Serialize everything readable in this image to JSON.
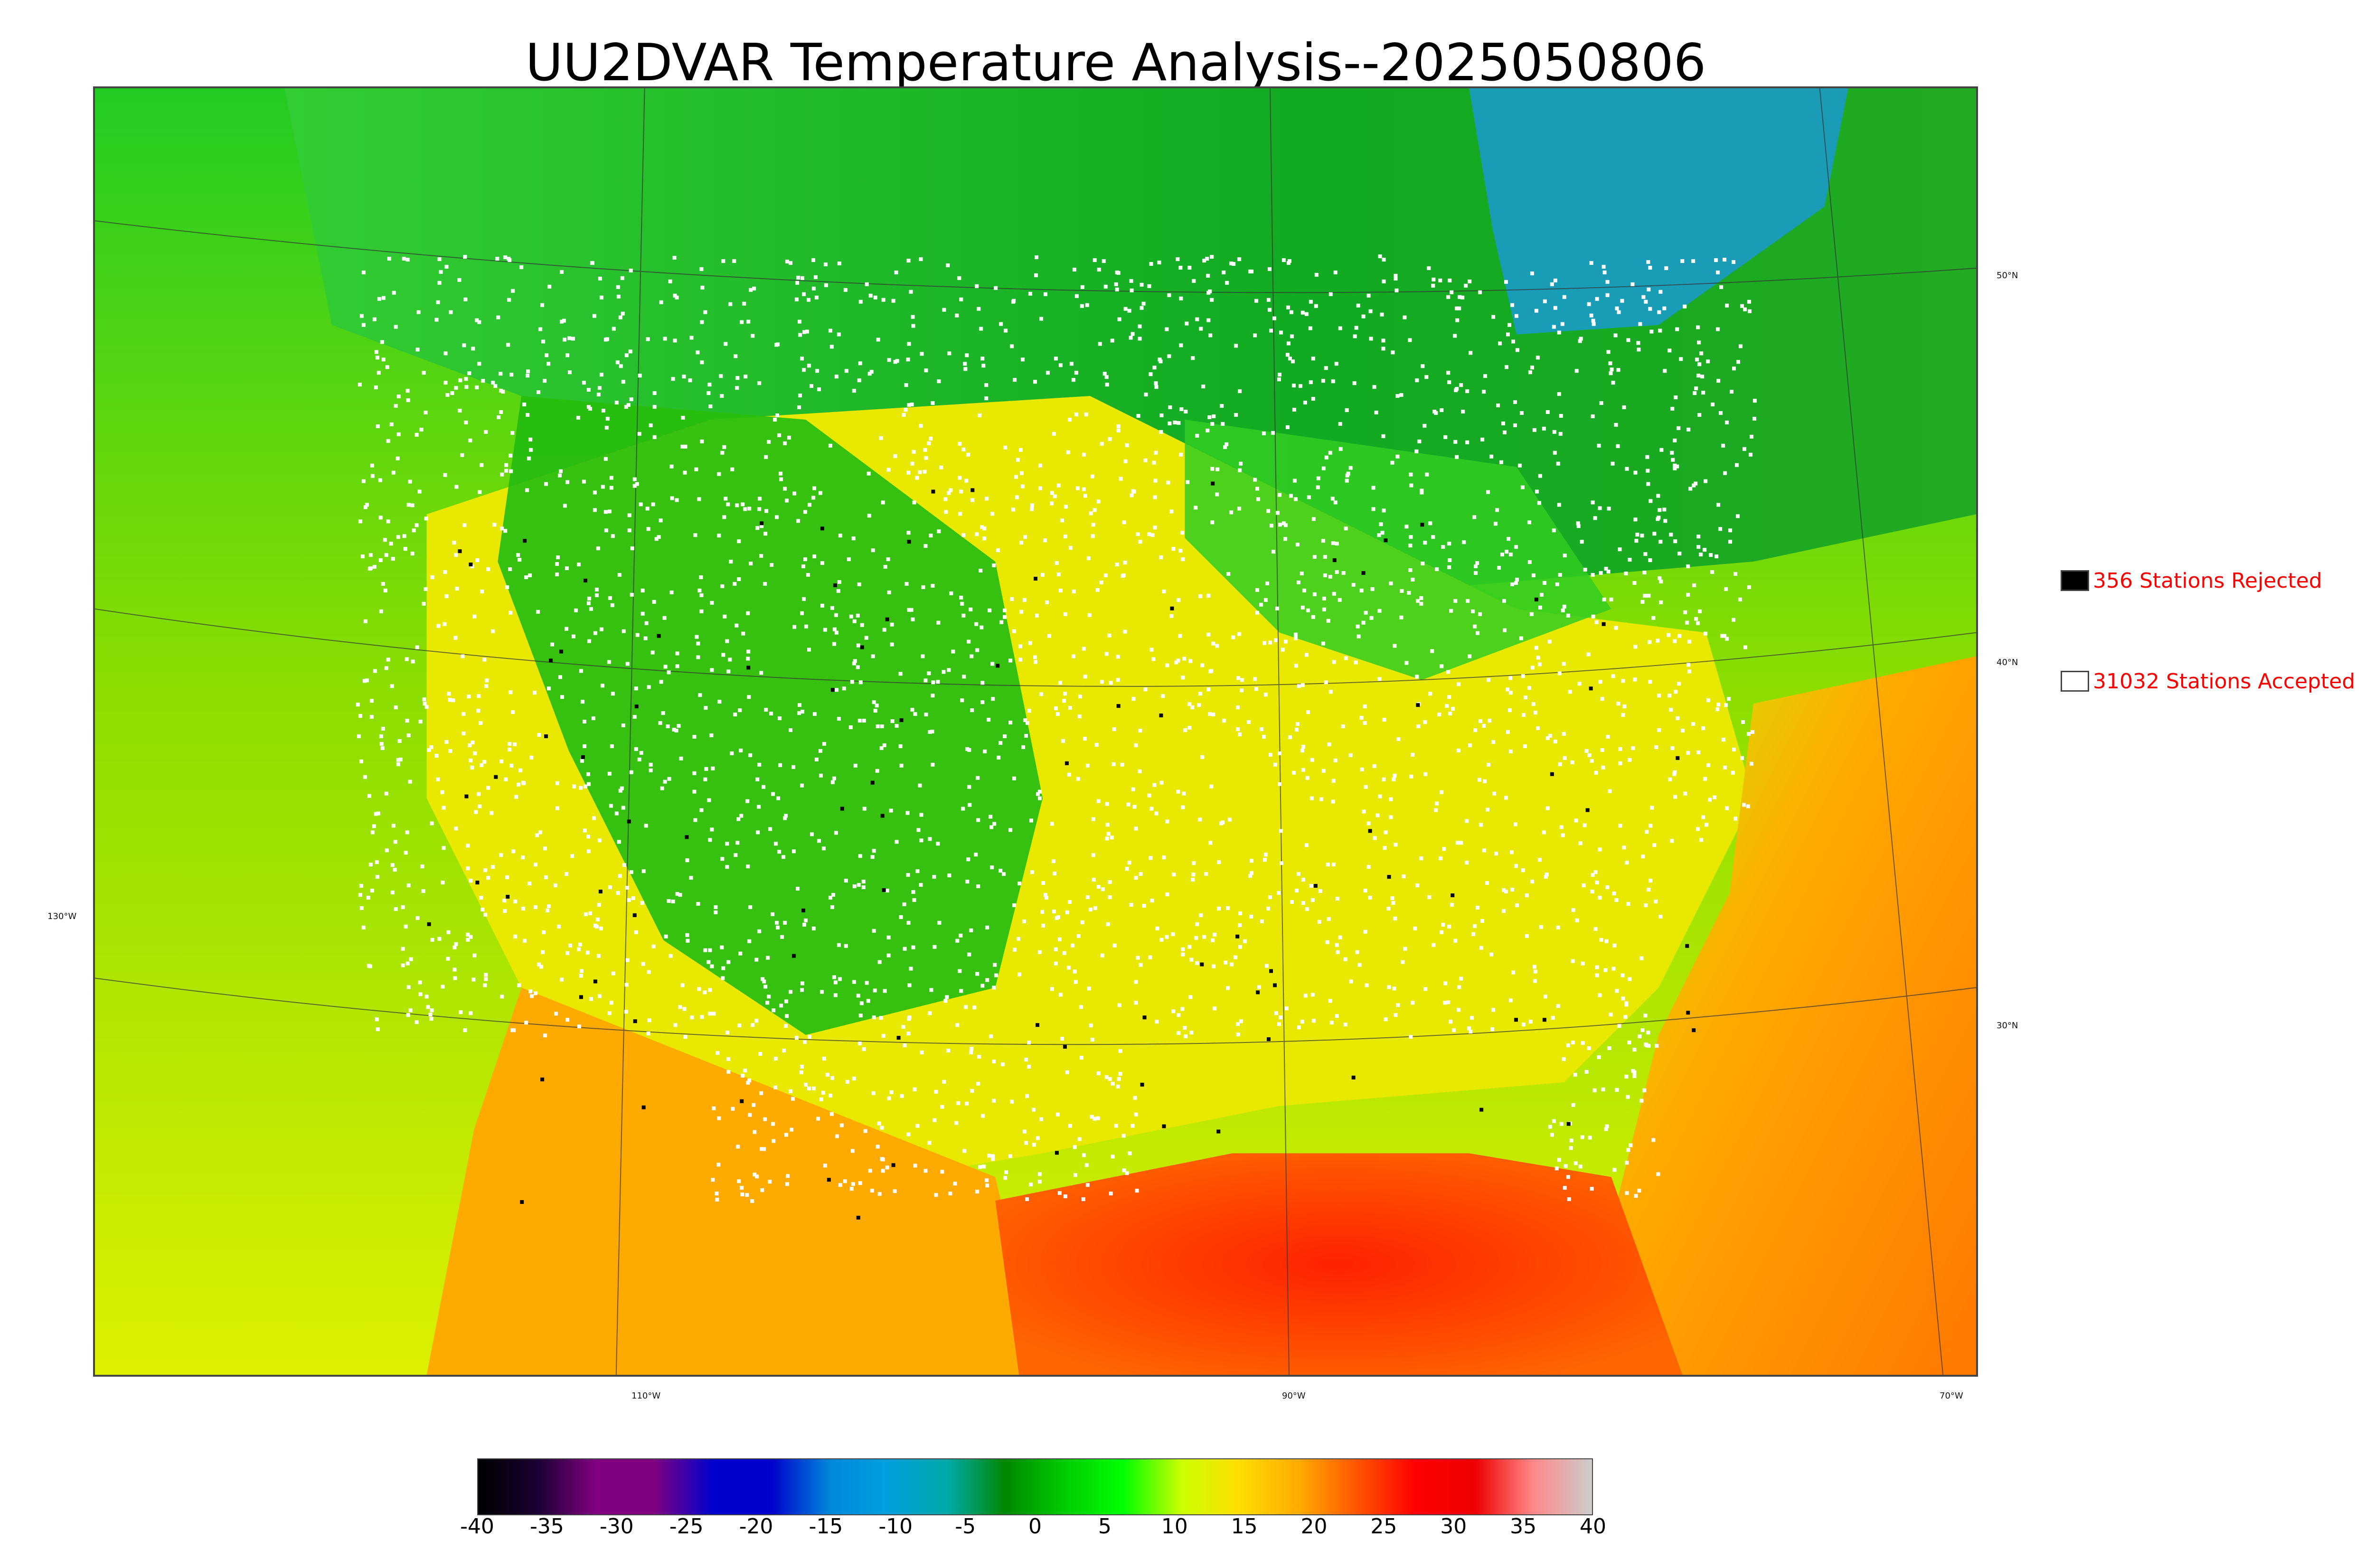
{
  "title": "UU2DVAR Temperature Analysis--2025050806",
  "legend": {
    "rejected": {
      "label": "356 Stations Rejected",
      "swatch_color": "#000000"
    },
    "accepted": {
      "label": "31032 Stations Accepted",
      "swatch_color": "#ffffff"
    }
  },
  "axis_labels": {
    "lon": [
      "110°W",
      "90°W",
      "70°W"
    ],
    "lon_left": "130°W",
    "lat": [
      "50°N",
      "40°N",
      "30°N"
    ]
  },
  "colorbar": {
    "ticks": [
      "-40",
      "-35",
      "-30",
      "-25",
      "-20",
      "-15",
      "-10",
      "-5",
      "0",
      "5",
      "10",
      "15",
      "20",
      "25",
      "30",
      "35",
      "40"
    ],
    "colors": [
      "#000000",
      "#1a0033",
      "#800080",
      "#800080",
      "#0000cc",
      "#0000cc",
      "#0088dd",
      "#00a0dd",
      "#00aaaa",
      "#008800",
      "#00cc00",
      "#00ff00",
      "#ccff00",
      "#ffdd00",
      "#ffaa00",
      "#ff5500",
      "#ff0000",
      "#ee0000",
      "#ff8888",
      "#cccccc"
    ],
    "colors_note_free": true
  },
  "map_colors": {
    "ocean_west": "#b5e000",
    "ocean_gulf": "#ff4d00",
    "atlantic": "#ff9a00",
    "canada": "#22cc22",
    "hudson": "#1e9fd6",
    "plains": "#f2e600",
    "rockies": "#11b311",
    "stations": "#ffffff"
  }
}
